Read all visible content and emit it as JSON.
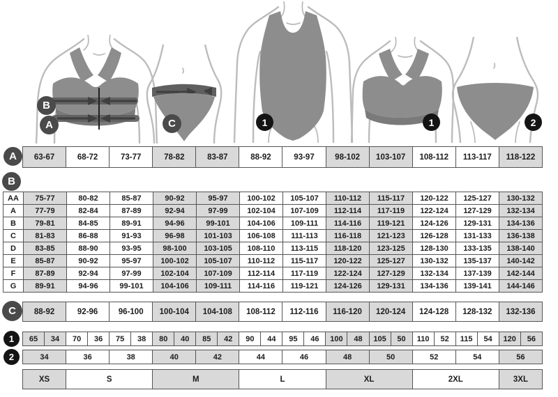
{
  "figures": {
    "bra_measure": {
      "band_b_label": "B",
      "band_a_label": "A"
    },
    "panty_measure": {
      "label": "C"
    },
    "swimsuit": {
      "label": "1"
    },
    "bra": {
      "label": "1"
    },
    "panty": {
      "label": "2"
    }
  },
  "rows": {
    "a": {
      "label": "A",
      "cells": [
        "63-67",
        "68-72",
        "73-77",
        "78-82",
        "83-87",
        "88-92",
        "93-97",
        "98-102",
        "103-107",
        "108-112",
        "113-117",
        "118-122"
      ]
    },
    "b": {
      "label": "B",
      "body_rows": [
        {
          "label": "AA",
          "cells": [
            "75-77",
            "80-82",
            "85-87",
            "90-92",
            "95-97",
            "100-102",
            "105-107",
            "110-112",
            "115-117",
            "120-122",
            "125-127",
            "130-132"
          ]
        },
        {
          "label": "A",
          "cells": [
            "77-79",
            "82-84",
            "87-89",
            "92-94",
            "97-99",
            "102-104",
            "107-109",
            "112-114",
            "117-119",
            "122-124",
            "127-129",
            "132-134"
          ]
        },
        {
          "label": "B",
          "cells": [
            "79-81",
            "84-85",
            "89-91",
            "94-96",
            "99-101",
            "104-106",
            "109-111",
            "114-116",
            "119-121",
            "124-126",
            "129-131",
            "134-136"
          ]
        },
        {
          "label": "C",
          "cells": [
            "81-83",
            "86-88",
            "91-93",
            "96-98",
            "101-103",
            "106-108",
            "111-113",
            "116-118",
            "121-123",
            "126-128",
            "131-133",
            "136-138"
          ]
        },
        {
          "label": "D",
          "cells": [
            "83-85",
            "88-90",
            "93-95",
            "98-100",
            "103-105",
            "108-110",
            "113-115",
            "118-120",
            "123-125",
            "128-130",
            "133-135",
            "138-140"
          ]
        },
        {
          "label": "E",
          "cells": [
            "85-87",
            "90-92",
            "95-97",
            "100-102",
            "105-107",
            "110-112",
            "115-117",
            "120-122",
            "125-127",
            "130-132",
            "135-137",
            "140-142"
          ]
        },
        {
          "label": "F",
          "cells": [
            "87-89",
            "92-94",
            "97-99",
            "102-104",
            "107-109",
            "112-114",
            "117-119",
            "122-124",
            "127-129",
            "132-134",
            "137-139",
            "142-144"
          ]
        },
        {
          "label": "G",
          "cells": [
            "89-91",
            "94-96",
            "99-101",
            "104-106",
            "109-111",
            "114-116",
            "119-121",
            "124-126",
            "129-131",
            "134-136",
            "139-141",
            "144-146"
          ]
        }
      ]
    },
    "c": {
      "label": "C",
      "cells": [
        "88-92",
        "92-96",
        "96-100",
        "100-104",
        "104-108",
        "108-112",
        "112-116",
        "116-120",
        "120-124",
        "124-128",
        "128-132",
        "132-136"
      ]
    },
    "one": {
      "label": "1",
      "cells": [
        "65",
        "34",
        "70",
        "36",
        "75",
        "38",
        "80",
        "40",
        "85",
        "42",
        "90",
        "44",
        "95",
        "46",
        "100",
        "48",
        "105",
        "50",
        "110",
        "52",
        "115",
        "54",
        "120",
        "56"
      ]
    },
    "two": {
      "label": "2",
      "cells": [
        "34",
        "36",
        "38",
        "40",
        "42",
        "44",
        "46",
        "48",
        "50",
        "52",
        "54",
        "56"
      ]
    },
    "sizes": {
      "cells": [
        {
          "label": "XS",
          "span": 1
        },
        {
          "label": "S",
          "span": 2
        },
        {
          "label": "M",
          "span": 2
        },
        {
          "label": "L",
          "span": 2
        },
        {
          "label": "XL",
          "span": 2
        },
        {
          "label": "2XL",
          "span": 2
        },
        {
          "label": "3XL",
          "span": 1
        }
      ]
    }
  },
  "colors": {
    "shaded_cell": "#d9d9d9",
    "cell_border": "#545454",
    "label_circle": "#4a4a4a",
    "numbered_circle": "#141414",
    "garment": "#8d8d8d"
  }
}
